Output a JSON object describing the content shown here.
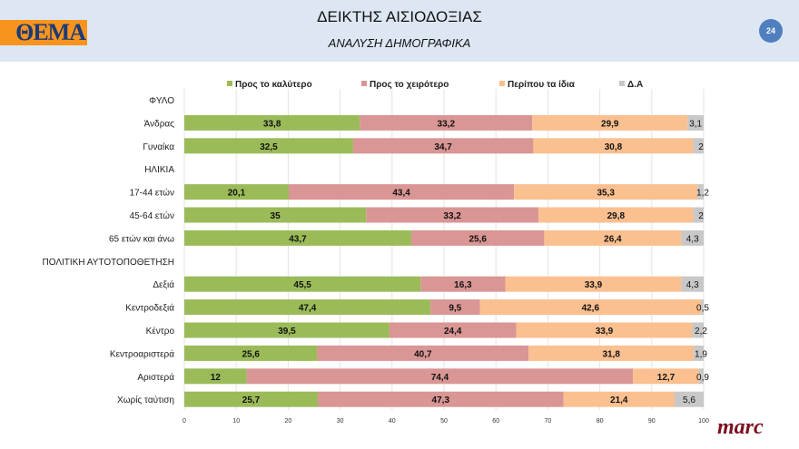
{
  "header": {
    "logo": "ΘΕΜΑ",
    "title": "ΔΕΙΚΤΗΣ ΑΙΣΙΟΔΟΞΙΑΣ",
    "subtitle": "ΑΝΑΛΥΣΗ ΔΗΜΟΓΡΑΦΙΚΑ",
    "page": "24"
  },
  "footer": {
    "brand": "marc"
  },
  "chart_data": {
    "type": "bar",
    "orientation": "horizontal",
    "stacked": true,
    "legend_position": "top",
    "grid": true,
    "xlim": [
      0,
      100
    ],
    "xticks": [
      0,
      10,
      20,
      30,
      40,
      50,
      60,
      70,
      80,
      90,
      100
    ],
    "colors": [
      "#9bbb59",
      "#d99694",
      "#fac090",
      "#c8c8c8"
    ],
    "categories": [
      "ΦΥΛΟ",
      "Άνδρας",
      "Γυναίκα",
      "ΗΛΙΚΙΑ",
      "17-44 ετών",
      "45-64 ετών",
      "65 ετών και άνω",
      "ΠΟΛΙΤΙΚΗ ΑΥΤΟΤΟΠΟΘΕΤΗΣΗ",
      "Δεξιά",
      "Κεντροδεξιά",
      "Κέντρο",
      "Κεντροαριστερά",
      "Αριστερά",
      "Χωρίς ταύτιση"
    ],
    "series": [
      {
        "name": "Προς το καλύτερο",
        "values": [
          null,
          33.8,
          32.5,
          null,
          20.1,
          35,
          43.7,
          null,
          45.5,
          47.4,
          39.5,
          25.6,
          12,
          25.7
        ]
      },
      {
        "name": "Προς το χειρότερο",
        "values": [
          null,
          33.2,
          34.7,
          null,
          43.4,
          33.2,
          25.6,
          null,
          16.3,
          9.5,
          24.4,
          40.7,
          74.4,
          47.3
        ]
      },
      {
        "name": "Περίπου τα ίδια",
        "values": [
          null,
          29.9,
          30.8,
          null,
          35.3,
          29.8,
          26.4,
          null,
          33.9,
          42.6,
          33.9,
          31.8,
          12.7,
          21.4
        ]
      },
      {
        "name": "Δ.Α",
        "values": [
          null,
          3.1,
          2,
          null,
          1.2,
          2,
          4.3,
          null,
          4.3,
          0.5,
          2.2,
          1.9,
          0.9,
          5.6
        ]
      }
    ]
  }
}
